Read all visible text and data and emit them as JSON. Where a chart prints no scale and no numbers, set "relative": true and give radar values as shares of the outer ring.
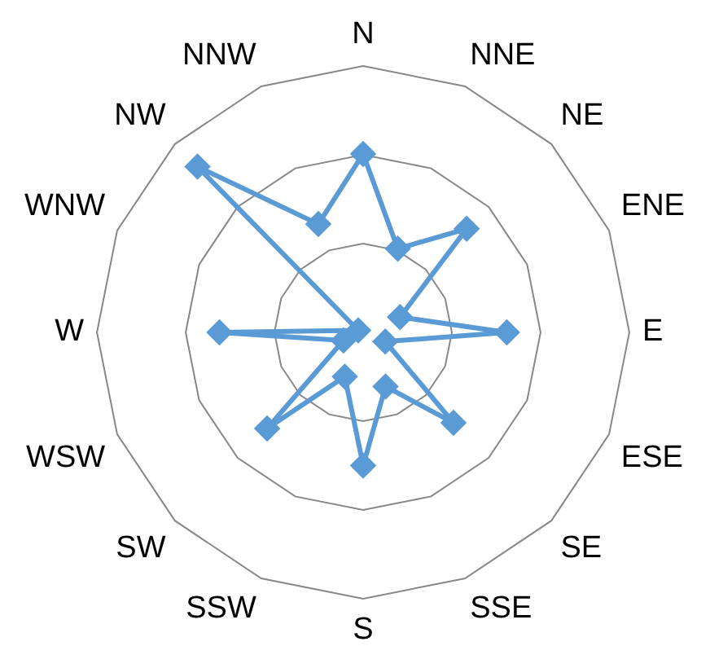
{
  "chart_data": {
    "type": "radar",
    "relative": true,
    "categories": [
      "N",
      "NNE",
      "NE",
      "ENE",
      "E",
      "ESE",
      "SE",
      "SSE",
      "S",
      "SSW",
      "SW",
      "WSW",
      "W",
      "WNW",
      "NW",
      "NNW"
    ],
    "series": [
      {
        "color": "#5b9bd5",
        "values": [
          0.67,
          0.34,
          0.55,
          0.15,
          0.54,
          0.09,
          0.48,
          0.22,
          0.5,
          0.18,
          0.51,
          0.08,
          0.54,
          0.02,
          0.88,
          0.44
        ]
      }
    ],
    "grid": true,
    "legend": false,
    "marker": "diamond",
    "line_style": "solid"
  }
}
